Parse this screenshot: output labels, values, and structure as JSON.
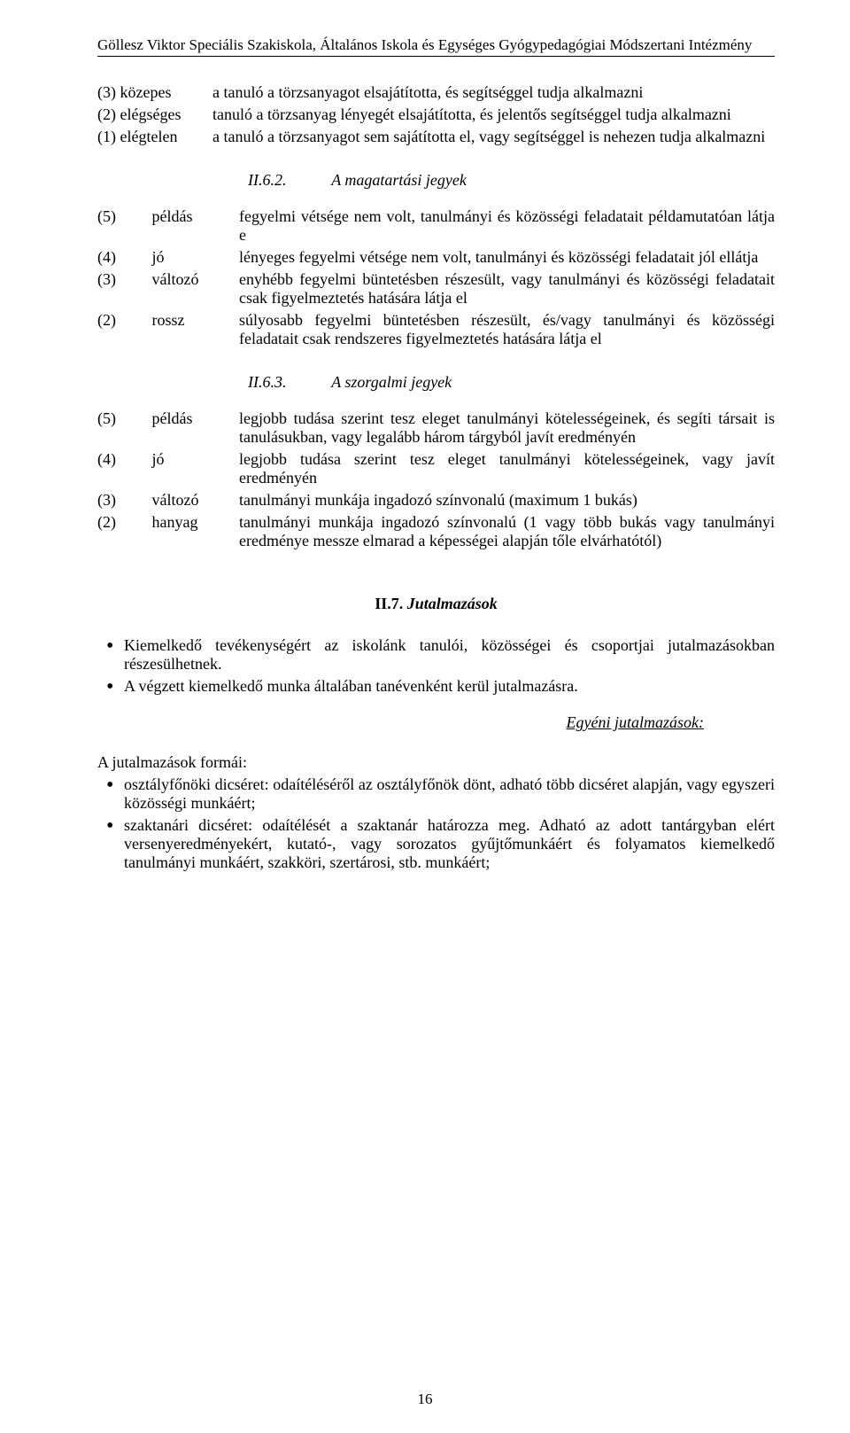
{
  "header": "Göllesz Viktor Speciális Szakiskola, Általános Iskola és Egységes Gyógypedagógiai Módszertani Intézmény",
  "intro_rows": [
    {
      "left": "(3) közepes",
      "right": "a tanuló a törzsanyagot elsajátította, és segítséggel tudja alkalmazni"
    },
    {
      "left": "(2) elégséges",
      "right": "tanuló a törzsanyag lényegét elsajátította, és jelentős segítséggel tudja alkalmazni"
    },
    {
      "left": "(1) elégtelen",
      "right": "a tanuló a törzsanyagot sem sajátította el, vagy segítséggel is nehezen tudja alkalmazni"
    }
  ],
  "section62": {
    "num": "II.6.2.",
    "title": "A magatartási jegyek"
  },
  "behavior_rows": [
    {
      "n": "(5)",
      "l": "példás",
      "d": "fegyelmi vétsége nem volt, tanulmányi és közösségi feladatait példamutatóan látja e"
    },
    {
      "n": "(4)",
      "l": "jó",
      "d": "lényeges fegyelmi vétsége nem volt, tanulmányi és közösségi feladatait jól ellátja"
    },
    {
      "n": "(3)",
      "l": "változó",
      "d": "enyhébb fegyelmi büntetésben részesült, vagy tanulmányi és közösségi feladatait csak figyelmeztetés hatására látja el"
    },
    {
      "n": "(2)",
      "l": "rossz",
      "d": "súlyosabb fegyelmi büntetésben részesült, és/vagy tanulmányi és közösségi feladatait csak rendszeres figyelmeztetés hatására látja el"
    }
  ],
  "section63": {
    "num": "II.6.3.",
    "title": "A szorgalmi jegyek"
  },
  "diligence_rows": [
    {
      "n": "(5)",
      "l": "példás",
      "d": "legjobb tudása szerint tesz eleget tanulmányi kötelességeinek, és segíti társait is tanulásukban, vagy legalább három tárgyból javít eredményén"
    },
    {
      "n": "(4)",
      "l": "jó",
      "d": "legjobb tudása szerint tesz eleget tanulmányi kötelességeinek, vagy javít eredményén"
    },
    {
      "n": "(3)",
      "l": "változó",
      "d": "tanulmányi munkája ingadozó színvonalú (maximum 1 bukás)"
    },
    {
      "n": "(2)",
      "l": "hanyag",
      "d": "tanulmányi munkája ingadozó színvonalú (1 vagy több bukás vagy tanulmányi eredménye messze elmarad a képességei alapján tőle elvárhatótól)"
    }
  ],
  "section7": {
    "num": "II.7.",
    "title": "Jutalmazások"
  },
  "rewards_bullets": [
    "Kiemelkedő tevékenységért az iskolánk tanulói, közösségei és csoportjai jutalmazásokban részesülhetnek.",
    "A végzett kiemelkedő munka általában tanévenként kerül jutalmazásra."
  ],
  "individual_rewards_heading": "Egyéni jutalmazások:",
  "forms_intro": "A jutalmazások formái:",
  "forms_bullets": [
    "osztályfőnöki dicséret: odaítéléséről az osztályfőnök dönt, adható több dicséret alapján, vagy egyszeri közösségi munkáért;",
    "szaktanári dicséret: odaítélését a szaktanár határozza meg. Adható az adott tantárgyban elért versenyeredményekért, kutató-, vagy sorozatos gyűjtőmunkáért és folyamatos kiemelkedő tanulmányi munkáért, szakköri, szertárosi, stb. munkáért;"
  ],
  "page_number": "16"
}
